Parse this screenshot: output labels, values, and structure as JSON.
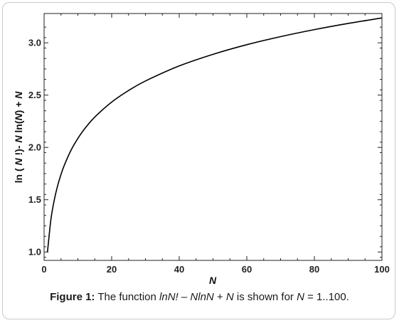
{
  "chart_data": {
    "type": "line",
    "xlabel": "N",
    "ylabel_parts": [
      "ln ( ",
      "N",
      " !)-  ",
      "N",
      " ln(",
      "N",
      ") + ",
      "N"
    ],
    "xlim": [
      0,
      100
    ],
    "ylim": [
      0.92,
      3.28
    ],
    "xticks": [
      0,
      20,
      40,
      60,
      80,
      100
    ],
    "yticks": [
      1.0,
      1.5,
      2.0,
      2.5,
      3.0
    ],
    "ytick_labels": [
      "1.0",
      "1.5",
      "2.0",
      "2.5",
      "3.0"
    ],
    "grid": false,
    "series": [
      {
        "color": "#000000",
        "x": [
          1,
          2,
          3,
          4,
          5,
          6,
          8,
          10,
          12,
          15,
          20,
          25,
          30,
          40,
          50,
          60,
          70,
          80,
          90,
          100
        ],
        "y": [
          1.0,
          1.307,
          1.495,
          1.633,
          1.741,
          1.831,
          1.975,
          2.086,
          2.178,
          2.29,
          2.433,
          2.544,
          2.635,
          2.779,
          2.89,
          2.982,
          3.059,
          3.126,
          3.185,
          3.238
        ]
      }
    ]
  },
  "caption": {
    "label": "Figure 1:",
    "pre": " The function ",
    "expr_a": "lnN!",
    "mid1": " – ",
    "expr_b": "NlnN",
    "mid2": " + ",
    "expr_c": "N",
    "mid3": " is shown for ",
    "expr_d": "N",
    "post": " = 1..100."
  }
}
